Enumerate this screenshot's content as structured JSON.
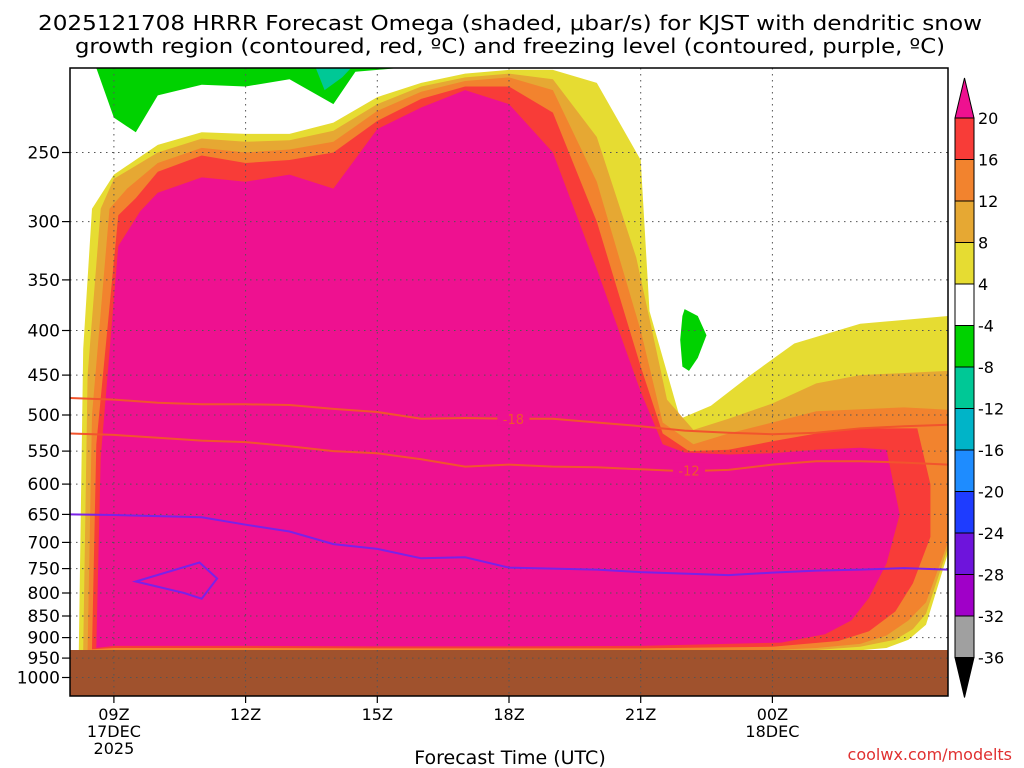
{
  "chart_data": {
    "type": "heatmap",
    "title_line1": "2025121708 HRRR Forecast Omega (shaded, μbar/s) for KJST with dendritic snow",
    "title_line2": "growth region (contoured, red, ºC) and freezing level (contoured, purple, ºC)",
    "xlabel": "Forecast Time (UTC)",
    "ylabel": "",
    "credit": "coolwx.com/modelts",
    "x_hours": [
      8,
      28
    ],
    "y_range_hPa": [
      200,
      1050
    ],
    "y_scale": "log-pressure",
    "y_ticks": [
      250,
      300,
      350,
      400,
      450,
      500,
      550,
      600,
      650,
      700,
      750,
      800,
      850,
      900,
      950,
      1000
    ],
    "x_ticks": [
      {
        "h": 9,
        "l1": "09Z",
        "l2": "17DEC",
        "l3": "2025"
      },
      {
        "h": 12,
        "l1": "12Z",
        "l2": "",
        "l3": ""
      },
      {
        "h": 15,
        "l1": "15Z",
        "l2": "",
        "l3": ""
      },
      {
        "h": 18,
        "l1": "18Z",
        "l2": "",
        "l3": ""
      },
      {
        "h": 21,
        "l1": "21Z",
        "l2": "",
        "l3": ""
      },
      {
        "h": 24,
        "l1": "00Z",
        "l2": "18DEC",
        "l3": ""
      }
    ],
    "grid": true,
    "ground_top_hPa": 930,
    "ground_color": "#a0522d",
    "colorbar": {
      "labels": [
        "20",
        "16",
        "12",
        "8",
        "4",
        "-4",
        "-8",
        "-12",
        "-16",
        "-20",
        "-24",
        "-28",
        "-32",
        "-36"
      ],
      "bins": [
        {
          "lo": 20,
          "hi": 99,
          "color": "#ee1190"
        },
        {
          "lo": 16,
          "hi": 20,
          "color": "#f83c38"
        },
        {
          "lo": 12,
          "hi": 16,
          "color": "#f2832e"
        },
        {
          "lo": 8,
          "hi": 12,
          "color": "#e6a833"
        },
        {
          "lo": 4,
          "hi": 8,
          "color": "#e6dc32"
        },
        {
          "lo": -4,
          "hi": 4,
          "color": "#ffffff"
        },
        {
          "lo": -8,
          "hi": -4,
          "color": "#00d200"
        },
        {
          "lo": -12,
          "hi": -8,
          "color": "#00c896"
        },
        {
          "lo": -16,
          "hi": -12,
          "color": "#00b4c8"
        },
        {
          "lo": -20,
          "hi": -16,
          "color": "#1e8cff"
        },
        {
          "lo": -24,
          "hi": -20,
          "color": "#1e3cff"
        },
        {
          "lo": -28,
          "hi": -24,
          "color": "#6e14dc"
        },
        {
          "lo": -32,
          "hi": -28,
          "color": "#a000c8"
        },
        {
          "lo": -36,
          "hi": -32,
          "color": "#a0a0a0"
        },
        {
          "lo": -99,
          "hi": -36,
          "color": "#000000"
        }
      ]
    },
    "omega_regions": [
      {
        "band": "4",
        "color": "#e6dc32",
        "pts": [
          [
            8.2,
            930
          ],
          [
            8.3,
            420
          ],
          [
            8.5,
            290
          ],
          [
            9,
            265
          ],
          [
            10,
            245
          ],
          [
            11,
            237
          ],
          [
            12,
            238
          ],
          [
            13,
            238
          ],
          [
            14,
            231
          ],
          [
            15,
            216
          ],
          [
            16,
            208
          ],
          [
            17,
            203
          ],
          [
            18,
            201
          ],
          [
            19,
            201
          ],
          [
            20,
            208
          ],
          [
            21,
            255
          ],
          [
            21.2,
            380
          ],
          [
            21.9,
            505
          ],
          [
            22.6,
            488
          ],
          [
            23.5,
            450
          ],
          [
            24.5,
            414
          ],
          [
            26,
            393
          ],
          [
            28,
            385
          ],
          [
            28,
            720
          ],
          [
            27.5,
            870
          ],
          [
            27.1,
            905
          ],
          [
            26.6,
            925
          ],
          [
            25.5,
            935
          ],
          [
            24,
            940
          ],
          [
            21,
            938
          ],
          [
            18,
            938
          ],
          [
            15,
            938
          ],
          [
            12,
            937
          ],
          [
            9,
            937
          ]
        ]
      },
      {
        "band": "8",
        "color": "#e6a833",
        "pts": [
          [
            8.3,
            930
          ],
          [
            8.4,
            450
          ],
          [
            8.7,
            290
          ],
          [
            9,
            268
          ],
          [
            10,
            250
          ],
          [
            11,
            241
          ],
          [
            12,
            243
          ],
          [
            13,
            242
          ],
          [
            14,
            236
          ],
          [
            15,
            220
          ],
          [
            16,
            210
          ],
          [
            17,
            205
          ],
          [
            18,
            203
          ],
          [
            19,
            206
          ],
          [
            20,
            240
          ],
          [
            20.9,
            330
          ],
          [
            21.6,
            480
          ],
          [
            22.2,
            520
          ],
          [
            23,
            505
          ],
          [
            24,
            485
          ],
          [
            25,
            460
          ],
          [
            26,
            450
          ],
          [
            28,
            445
          ],
          [
            28,
            710
          ],
          [
            27.5,
            845
          ],
          [
            27.2,
            880
          ],
          [
            26.8,
            905
          ],
          [
            26,
            922
          ],
          [
            25,
            930
          ],
          [
            24,
            935
          ],
          [
            21,
            936
          ],
          [
            18,
            936
          ],
          [
            15,
            936
          ],
          [
            12,
            935
          ],
          [
            9,
            935
          ]
        ]
      },
      {
        "band": "12",
        "color": "#f2832e",
        "pts": [
          [
            8.4,
            930
          ],
          [
            8.5,
            500
          ],
          [
            8.9,
            290
          ],
          [
            9.3,
            275
          ],
          [
            10,
            257
          ],
          [
            11,
            247
          ],
          [
            12,
            250
          ],
          [
            13,
            248
          ],
          [
            14,
            243
          ],
          [
            15,
            224
          ],
          [
            16,
            213
          ],
          [
            17,
            207
          ],
          [
            18,
            205
          ],
          [
            19,
            212
          ],
          [
            20,
            270
          ],
          [
            21,
            400
          ],
          [
            21.5,
            510
          ],
          [
            22.2,
            540
          ],
          [
            23,
            525
          ],
          [
            24,
            510
          ],
          [
            25,
            495
          ],
          [
            27,
            490
          ],
          [
            28,
            493
          ],
          [
            28,
            700
          ],
          [
            27.5,
            820
          ],
          [
            27.1,
            860
          ],
          [
            26.6,
            895
          ],
          [
            26,
            915
          ],
          [
            25,
            925
          ],
          [
            24,
            930
          ],
          [
            21,
            932
          ],
          [
            18,
            932
          ],
          [
            15,
            932
          ],
          [
            12,
            931
          ],
          [
            9,
            931
          ]
        ]
      },
      {
        "band": "16",
        "color": "#f83c38",
        "pts": [
          [
            8.5,
            928
          ],
          [
            8.6,
            540
          ],
          [
            9.1,
            295
          ],
          [
            9.5,
            282
          ],
          [
            10,
            263
          ],
          [
            11,
            252
          ],
          [
            12,
            257
          ],
          [
            13,
            255
          ],
          [
            14,
            250
          ],
          [
            15,
            230
          ],
          [
            16,
            217
          ],
          [
            17,
            210
          ],
          [
            18,
            210
          ],
          [
            19,
            225
          ],
          [
            20,
            300
          ],
          [
            21,
            440
          ],
          [
            21.5,
            525
          ],
          [
            22.1,
            550
          ],
          [
            23,
            548
          ],
          [
            24,
            536
          ],
          [
            25,
            525
          ],
          [
            26,
            518
          ],
          [
            27.3,
            518
          ],
          [
            27.6,
            600
          ],
          [
            27.6,
            690
          ],
          [
            27.2,
            780
          ],
          [
            26.8,
            840
          ],
          [
            26.2,
            885
          ],
          [
            25.5,
            908
          ],
          [
            24,
            922
          ],
          [
            21,
            926
          ],
          [
            18,
            926
          ],
          [
            15,
            926
          ],
          [
            12,
            925
          ],
          [
            9,
            925
          ]
        ]
      },
      {
        "band": "20",
        "color": "#ee1190",
        "pts": [
          [
            8.6,
            925
          ],
          [
            8.7,
            560
          ],
          [
            9.1,
            320
          ],
          [
            9.6,
            292
          ],
          [
            10,
            278
          ],
          [
            11,
            267
          ],
          [
            12,
            270
          ],
          [
            13,
            265
          ],
          [
            14,
            275
          ],
          [
            15,
            235
          ],
          [
            16,
            222
          ],
          [
            17,
            212
          ],
          [
            18,
            220
          ],
          [
            19,
            250
          ],
          [
            20,
            340
          ],
          [
            21,
            470
          ],
          [
            21.5,
            540
          ],
          [
            22,
            552
          ],
          [
            23,
            555
          ],
          [
            24,
            553
          ],
          [
            25,
            548
          ],
          [
            26,
            545
          ],
          [
            26.6,
            548
          ],
          [
            26.9,
            650
          ],
          [
            26.6,
            740
          ],
          [
            26.2,
            810
          ],
          [
            25.8,
            860
          ],
          [
            25.2,
            892
          ],
          [
            24.2,
            912
          ],
          [
            21,
            920
          ],
          [
            18,
            921
          ],
          [
            15,
            921
          ],
          [
            12,
            920
          ],
          [
            9,
            920
          ]
        ]
      },
      {
        "band": "-8",
        "color": "#00d200",
        "pts": [
          [
            8.6,
            200
          ],
          [
            9,
            228
          ],
          [
            9.5,
            237
          ],
          [
            10,
            215
          ],
          [
            11,
            209
          ],
          [
            12,
            210
          ],
          [
            13,
            206
          ],
          [
            14,
            220
          ],
          [
            14.5,
            202
          ],
          [
            15.5,
            200
          ]
        ]
      },
      {
        "band": "-8",
        "color": "#00d200",
        "pts": [
          [
            22,
            378
          ],
          [
            22.3,
            385
          ],
          [
            22.5,
            405
          ],
          [
            22.3,
            430
          ],
          [
            22.1,
            445
          ],
          [
            21.95,
            440
          ],
          [
            21.9,
            410
          ],
          [
            21.95,
            385
          ]
        ]
      },
      {
        "band": "-12",
        "color": "#00c896",
        "pts": [
          [
            13.6,
            200
          ],
          [
            13.8,
            212
          ],
          [
            14.2,
            205
          ],
          [
            14.4,
            200
          ]
        ]
      }
    ],
    "dgz_contours": [
      {
        "label": "-18",
        "label_at": [
          18.1,
          505
        ],
        "pts": [
          [
            8,
            478
          ],
          [
            9,
            480
          ],
          [
            10,
            484
          ],
          [
            11,
            486
          ],
          [
            12,
            486
          ],
          [
            13,
            487
          ],
          [
            14,
            492
          ],
          [
            15,
            496
          ],
          [
            16,
            505
          ],
          [
            17,
            504
          ],
          [
            18,
            505
          ],
          [
            19,
            505
          ],
          [
            20,
            510
          ],
          [
            21,
            515
          ],
          [
            22,
            521
          ],
          [
            23,
            524
          ],
          [
            24,
            526
          ],
          [
            25,
            524
          ],
          [
            26,
            518
          ],
          [
            27,
            515
          ],
          [
            28,
            513
          ]
        ]
      },
      {
        "label": "-12",
        "label_at": [
          22.1,
          579
        ],
        "pts": [
          [
            8,
            525
          ],
          [
            9,
            527
          ],
          [
            10,
            531
          ],
          [
            11,
            535
          ],
          [
            12,
            537
          ],
          [
            13,
            543
          ],
          [
            14,
            550
          ],
          [
            15,
            553
          ],
          [
            16,
            562
          ],
          [
            17,
            573
          ],
          [
            18,
            570
          ],
          [
            19,
            573
          ],
          [
            20,
            574
          ],
          [
            21,
            577
          ],
          [
            22,
            580
          ],
          [
            23,
            578
          ],
          [
            24,
            570
          ],
          [
            25,
            565
          ],
          [
            26,
            565
          ],
          [
            27,
            567
          ],
          [
            28,
            570
          ]
        ]
      }
    ],
    "freezing_level": [
      {
        "closed": false,
        "pts": [
          [
            8,
            650
          ],
          [
            9,
            651
          ],
          [
            10,
            653
          ],
          [
            11,
            655
          ],
          [
            12,
            668
          ],
          [
            13,
            680
          ],
          [
            14,
            703
          ],
          [
            15,
            712
          ],
          [
            16,
            730
          ],
          [
            17,
            728
          ],
          [
            18,
            748
          ],
          [
            19,
            750
          ],
          [
            20,
            752
          ],
          [
            21,
            757
          ],
          [
            22,
            760
          ],
          [
            23,
            763
          ],
          [
            24,
            758
          ],
          [
            25,
            754
          ],
          [
            26,
            752
          ],
          [
            27,
            749
          ],
          [
            28,
            752
          ]
        ]
      },
      {
        "closed": true,
        "pts": [
          [
            9.5,
            776
          ],
          [
            10.95,
            738
          ],
          [
            11.35,
            770
          ],
          [
            11,
            812
          ],
          [
            10.6,
            800
          ]
        ]
      }
    ]
  }
}
